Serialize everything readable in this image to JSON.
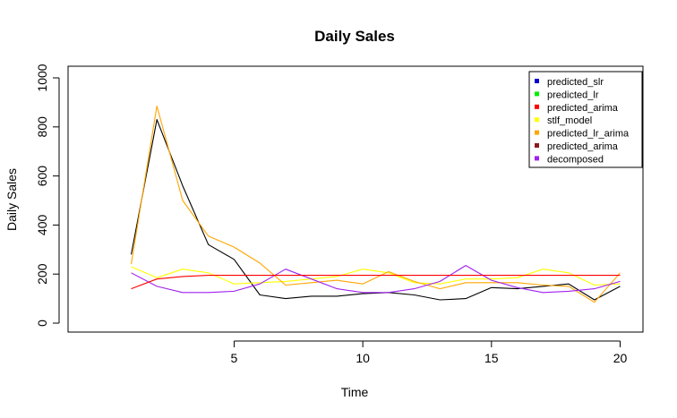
{
  "chart_data": {
    "type": "line",
    "title": "Daily Sales",
    "xlabel": "Time",
    "ylabel": "Daily Sales",
    "xlim": [
      1,
      20
    ],
    "ylim": [
      0,
      1000
    ],
    "xticks": [
      5,
      10,
      15,
      20
    ],
    "yticks": [
      0,
      200,
      400,
      600,
      800,
      1000
    ],
    "grid": false,
    "legend_position": "top-right",
    "x": [
      1,
      2,
      3,
      4,
      5,
      6,
      7,
      8,
      9,
      10,
      11,
      12,
      13,
      14,
      15,
      16,
      17,
      18,
      19,
      20
    ],
    "legend": [
      {
        "label": "predicted_slr",
        "color": "#0000cc"
      },
      {
        "label": "predicted_lr",
        "color": "#00ee00"
      },
      {
        "label": "predicted_arima",
        "color": "#ff0000"
      },
      {
        "label": "stlf_model",
        "color": "#ffff00"
      },
      {
        "label": "predicted_lr_arima",
        "color": "#ffa500"
      },
      {
        "label": "predicted_arima",
        "color": "#8b1a1a"
      },
      {
        "label": "decomposed",
        "color": "#a020f0"
      }
    ],
    "series": [
      {
        "color": "#000000",
        "values": [
          280,
          830,
          560,
          320,
          260,
          115,
          100,
          110,
          110,
          120,
          125,
          115,
          95,
          100,
          145,
          140,
          150,
          160,
          95,
          150
        ]
      },
      {
        "color": "#ffff00",
        "values": [
          230,
          185,
          220,
          205,
          160,
          165,
          170,
          180,
          190,
          220,
          205,
          165,
          160,
          180,
          180,
          185,
          220,
          205,
          155,
          160
        ]
      },
      {
        "color": "#ffa500",
        "values": [
          240,
          885,
          500,
          355,
          310,
          245,
          155,
          165,
          175,
          160,
          210,
          170,
          140,
          165,
          165,
          165,
          155,
          150,
          85,
          205
        ]
      },
      {
        "color": "#a020f0",
        "values": [
          205,
          150,
          125,
          125,
          130,
          160,
          220,
          180,
          140,
          125,
          125,
          140,
          170,
          235,
          175,
          145,
          125,
          130,
          140,
          170
        ]
      },
      {
        "color": "#ff0000",
        "values": [
          140,
          180,
          190,
          195,
          195,
          195,
          195,
          195,
          195,
          195,
          195,
          195,
          195,
          195,
          195,
          195,
          195,
          195,
          195,
          195
        ]
      }
    ]
  }
}
